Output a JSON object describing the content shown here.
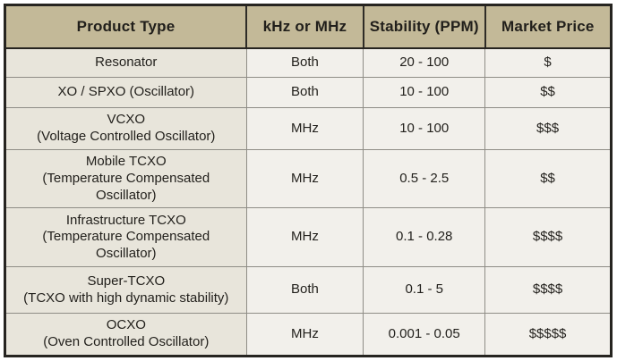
{
  "colors": {
    "header_bg": "#c3b998",
    "first_column_bg": "#e8e5db",
    "cell_bg": "#f2f0eb",
    "outer_border": "#262420",
    "grid_line": "#8f8d86",
    "text": "#211f1b"
  },
  "table": {
    "columns": [
      "Product Type",
      "kHz or MHz",
      "Stability (PPM)",
      "Market Price"
    ],
    "rows": [
      {
        "product": "Resonator",
        "product_detail": "",
        "unit": "Both",
        "stability": "20 - 100",
        "price": "$"
      },
      {
        "product": "XO / SPXO (Oscillator)",
        "product_detail": "",
        "unit": "Both",
        "stability": "10 - 100",
        "price": "$$"
      },
      {
        "product": "VCXO",
        "product_detail": "(Voltage Controlled Oscillator)",
        "unit": "MHz",
        "stability": "10 - 100",
        "price": "$$$"
      },
      {
        "product": "Mobile TCXO",
        "product_detail": "(Temperature Compensated Oscillator)",
        "unit": "MHz",
        "stability": "0.5 - 2.5",
        "price": "$$"
      },
      {
        "product": "Infrastructure TCXO",
        "product_detail": "(Temperature Compensated Oscillator)",
        "unit": "MHz",
        "stability": "0.1 - 0.28",
        "price": "$$$$"
      },
      {
        "product": "Super-TCXO",
        "product_detail": "(TCXO with high dynamic stability)",
        "unit": "Both",
        "stability": "0.1 - 5",
        "price": "$$$$"
      },
      {
        "product": "OCXO",
        "product_detail": "(Oven Controlled Oscillator)",
        "unit": "MHz",
        "stability": "0.001 - 0.05",
        "price": "$$$$$"
      }
    ]
  },
  "chart_data": {
    "type": "table",
    "title": "",
    "columns": [
      "Product Type",
      "kHz or MHz",
      "Stability (PPM)",
      "Market Price"
    ],
    "rows": [
      [
        "Resonator",
        "Both",
        "20 - 100",
        "$"
      ],
      [
        "XO / SPXO (Oscillator)",
        "Both",
        "10 - 100",
        "$$"
      ],
      [
        "VCXO (Voltage Controlled Oscillator)",
        "MHz",
        "10 - 100",
        "$$$"
      ],
      [
        "Mobile TCXO (Temperature Compensated Oscillator)",
        "MHz",
        "0.5 - 2.5",
        "$$"
      ],
      [
        "Infrastructure TCXO (Temperature Compensated Oscillator)",
        "MHz",
        "0.1 - 0.28",
        "$$$$"
      ],
      [
        "Super-TCXO (TCXO with high dynamic stability)",
        "Both",
        "0.1 - 5",
        "$$$$"
      ],
      [
        "OCXO (Oven Controlled Oscillator)",
        "MHz",
        "0.001 - 0.05",
        "$$$$$"
      ]
    ]
  }
}
